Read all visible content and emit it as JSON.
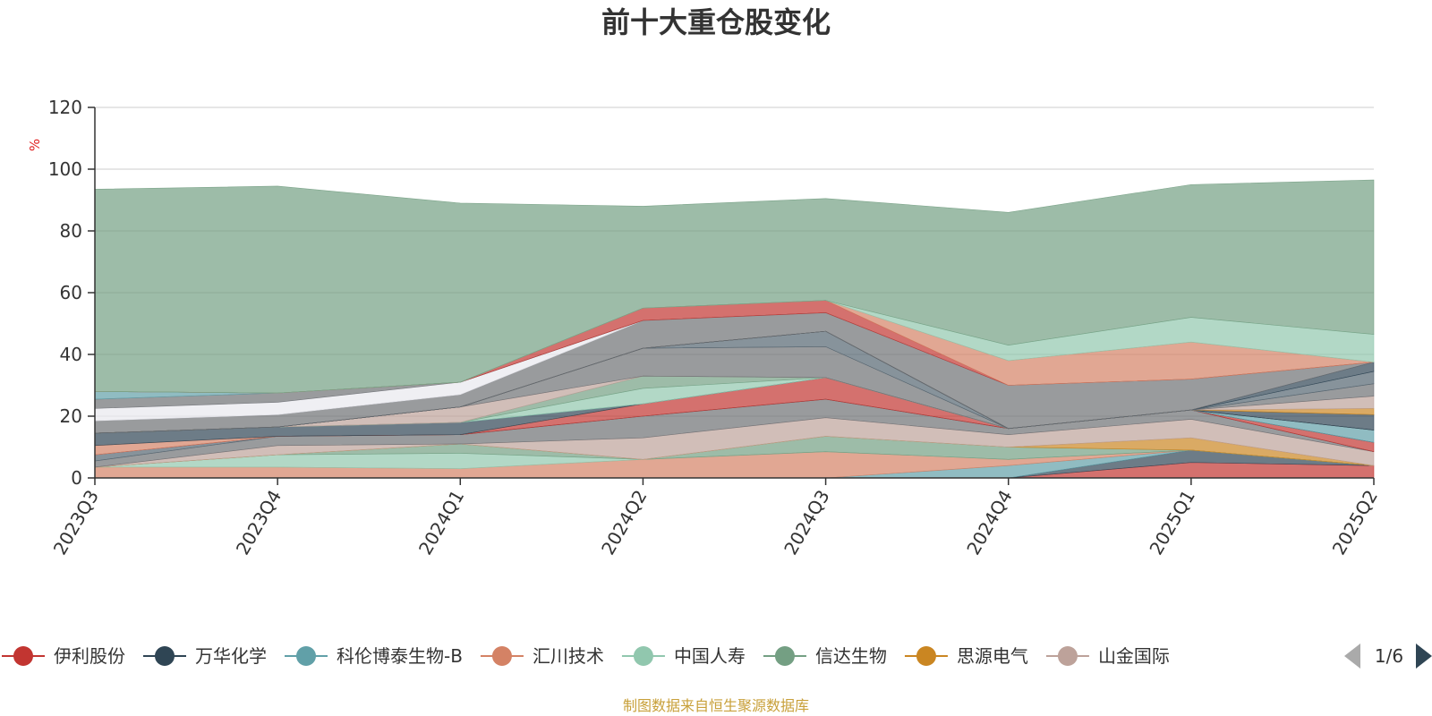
{
  "chart_data": {
    "type": "area",
    "title": "前十大重仓股变化",
    "ylabel": "%",
    "ylim": [
      0,
      120
    ],
    "yticks": [
      0,
      20,
      40,
      60,
      80,
      100,
      120
    ],
    "categories": [
      "2023Q3",
      "2023Q4",
      "2024Q1",
      "2024Q2",
      "2024Q3",
      "2024Q4",
      "2025Q1",
      "2025Q2"
    ],
    "grid": true,
    "series": [
      {
        "name": "伊利股份",
        "color": "#c23531",
        "values": [
          0,
          0,
          0,
          0,
          0,
          0,
          5,
          4
        ]
      },
      {
        "name": "万华化学",
        "color": "#2f4554",
        "values": [
          0,
          0,
          0,
          0,
          0,
          0,
          4,
          0
        ]
      },
      {
        "name": "科伦博泰生物-B",
        "color": "#61a0a8",
        "values": [
          0,
          0,
          0,
          0,
          0,
          4,
          0,
          0
        ]
      },
      {
        "name": "汇川技术",
        "color": "#d48265",
        "values": [
          3.5,
          3.5,
          3,
          6,
          8.5,
          2,
          0,
          0
        ]
      },
      {
        "name": "中国人寿",
        "color": "#91c7ae",
        "values": [
          0,
          4,
          5,
          0,
          0,
          0,
          0,
          0
        ]
      },
      {
        "name": "信达生物",
        "color": "#749f83",
        "values": [
          0,
          0,
          3,
          0,
          5,
          4,
          0,
          0
        ]
      },
      {
        "name": "思源电气",
        "color": "#ca8622",
        "values": [
          0,
          0,
          0,
          0,
          0,
          0,
          4,
          0
        ]
      },
      {
        "name": "山金国际",
        "color": "#bda29a",
        "values": [
          0,
          3,
          0,
          7,
          6,
          4,
          6,
          4.5
        ]
      },
      {
        "name": "",
        "color": "#6e7074",
        "values": [
          2,
          3,
          3,
          7,
          6,
          2,
          3,
          0
        ]
      },
      {
        "name": "",
        "color": "#546570",
        "values": [
          2,
          0,
          0,
          0,
          0,
          0,
          0,
          0
        ]
      },
      {
        "name": "",
        "color": "#c23531",
        "values": [
          0,
          0,
          0,
          4,
          7,
          0,
          0,
          3
        ]
      },
      {
        "name": "",
        "color": "#d48265",
        "values": [
          3,
          0,
          0,
          0,
          0,
          0,
          0,
          0
        ]
      },
      {
        "name": "",
        "color": "#2f4554",
        "values": [
          4,
          3,
          4,
          0,
          0,
          0,
          0,
          0
        ]
      },
      {
        "name": "",
        "color": "#61a0a8",
        "values": [
          0,
          0,
          0,
          0,
          0,
          0,
          0,
          4
        ]
      },
      {
        "name": "",
        "color": "#91c7ae",
        "values": [
          0,
          0,
          0,
          5,
          0,
          0,
          0,
          0
        ]
      },
      {
        "name": "",
        "color": "#749f83",
        "values": [
          0,
          0,
          0,
          4,
          0,
          0,
          0,
          0
        ]
      },
      {
        "name": "",
        "color": "#bda29a",
        "values": [
          0,
          0,
          5,
          0,
          0,
          0,
          0,
          0
        ]
      },
      {
        "name": "",
        "color": "#6e7074",
        "values": [
          0,
          0,
          0,
          9,
          10,
          0,
          0,
          0
        ]
      },
      {
        "name": "",
        "color": "#546570",
        "values": [
          0,
          0,
          0,
          0,
          5,
          0,
          0,
          0
        ]
      },
      {
        "name": "",
        "color": "#2f4554",
        "values": [
          0,
          0,
          0,
          0,
          0,
          0,
          0,
          5
        ]
      },
      {
        "name": "",
        "color": "#ca8622",
        "values": [
          0,
          0,
          0,
          0,
          0,
          0,
          0,
          2
        ]
      },
      {
        "name": "",
        "color": "#bda29a",
        "values": [
          0,
          0,
          0,
          0,
          0,
          0,
          0,
          4
        ]
      },
      {
        "name": "",
        "color": "#6e7074",
        "values": [
          0,
          0,
          0,
          0,
          0,
          0,
          0,
          4
        ]
      },
      {
        "name": "",
        "color": "#546570",
        "values": [
          0,
          0,
          0,
          0,
          0,
          0,
          0,
          4
        ]
      },
      {
        "name": "",
        "color": "#2f4554",
        "values": [
          0,
          0,
          0,
          0,
          0,
          0,
          0,
          3
        ]
      },
      {
        "name": "",
        "color": "#6e7074",
        "values": [
          4,
          4,
          4,
          9,
          6,
          14,
          10,
          0
        ]
      },
      {
        "name": "",
        "color": "#e8e8ee",
        "values": [
          4,
          4,
          4,
          0,
          0,
          0,
          0,
          0
        ]
      },
      {
        "name": "",
        "color": "#6e7074",
        "values": [
          3,
          3,
          0,
          0,
          0,
          0,
          0,
          0
        ]
      },
      {
        "name": "",
        "color": "#61a0a8",
        "values": [
          2.5,
          0,
          0,
          0,
          0,
          0,
          0,
          0
        ]
      },
      {
        "name": "",
        "color": "#c23531",
        "values": [
          0,
          0,
          0,
          4,
          4,
          0,
          0,
          0
        ]
      },
      {
        "name": "",
        "color": "#d48265",
        "values": [
          0,
          0,
          0,
          0,
          0,
          8,
          12,
          0
        ]
      },
      {
        "name": "",
        "color": "#91c7ae",
        "values": [
          0,
          0,
          0,
          0,
          0,
          5,
          8,
          9
        ]
      },
      {
        "name": "",
        "color": "#749f83",
        "values": [
          65.5,
          67,
          58,
          33,
          33,
          43,
          43,
          50
        ]
      }
    ]
  },
  "legend": {
    "items": [
      {
        "name": "伊利股份",
        "color": "#c23531"
      },
      {
        "name": "万华化学",
        "color": "#2f4554"
      },
      {
        "name": "科伦博泰生物-B",
        "color": "#61a0a8"
      },
      {
        "name": "汇川技术",
        "color": "#d48265"
      },
      {
        "name": "中国人寿",
        "color": "#91c7ae"
      },
      {
        "name": "信达生物",
        "color": "#749f83"
      },
      {
        "name": "思源电气",
        "color": "#ca8622"
      },
      {
        "name": "山金国际",
        "color": "#bda29a"
      }
    ],
    "page_label": "1/6"
  },
  "source_note": "制图数据来自恒生聚源数据库"
}
